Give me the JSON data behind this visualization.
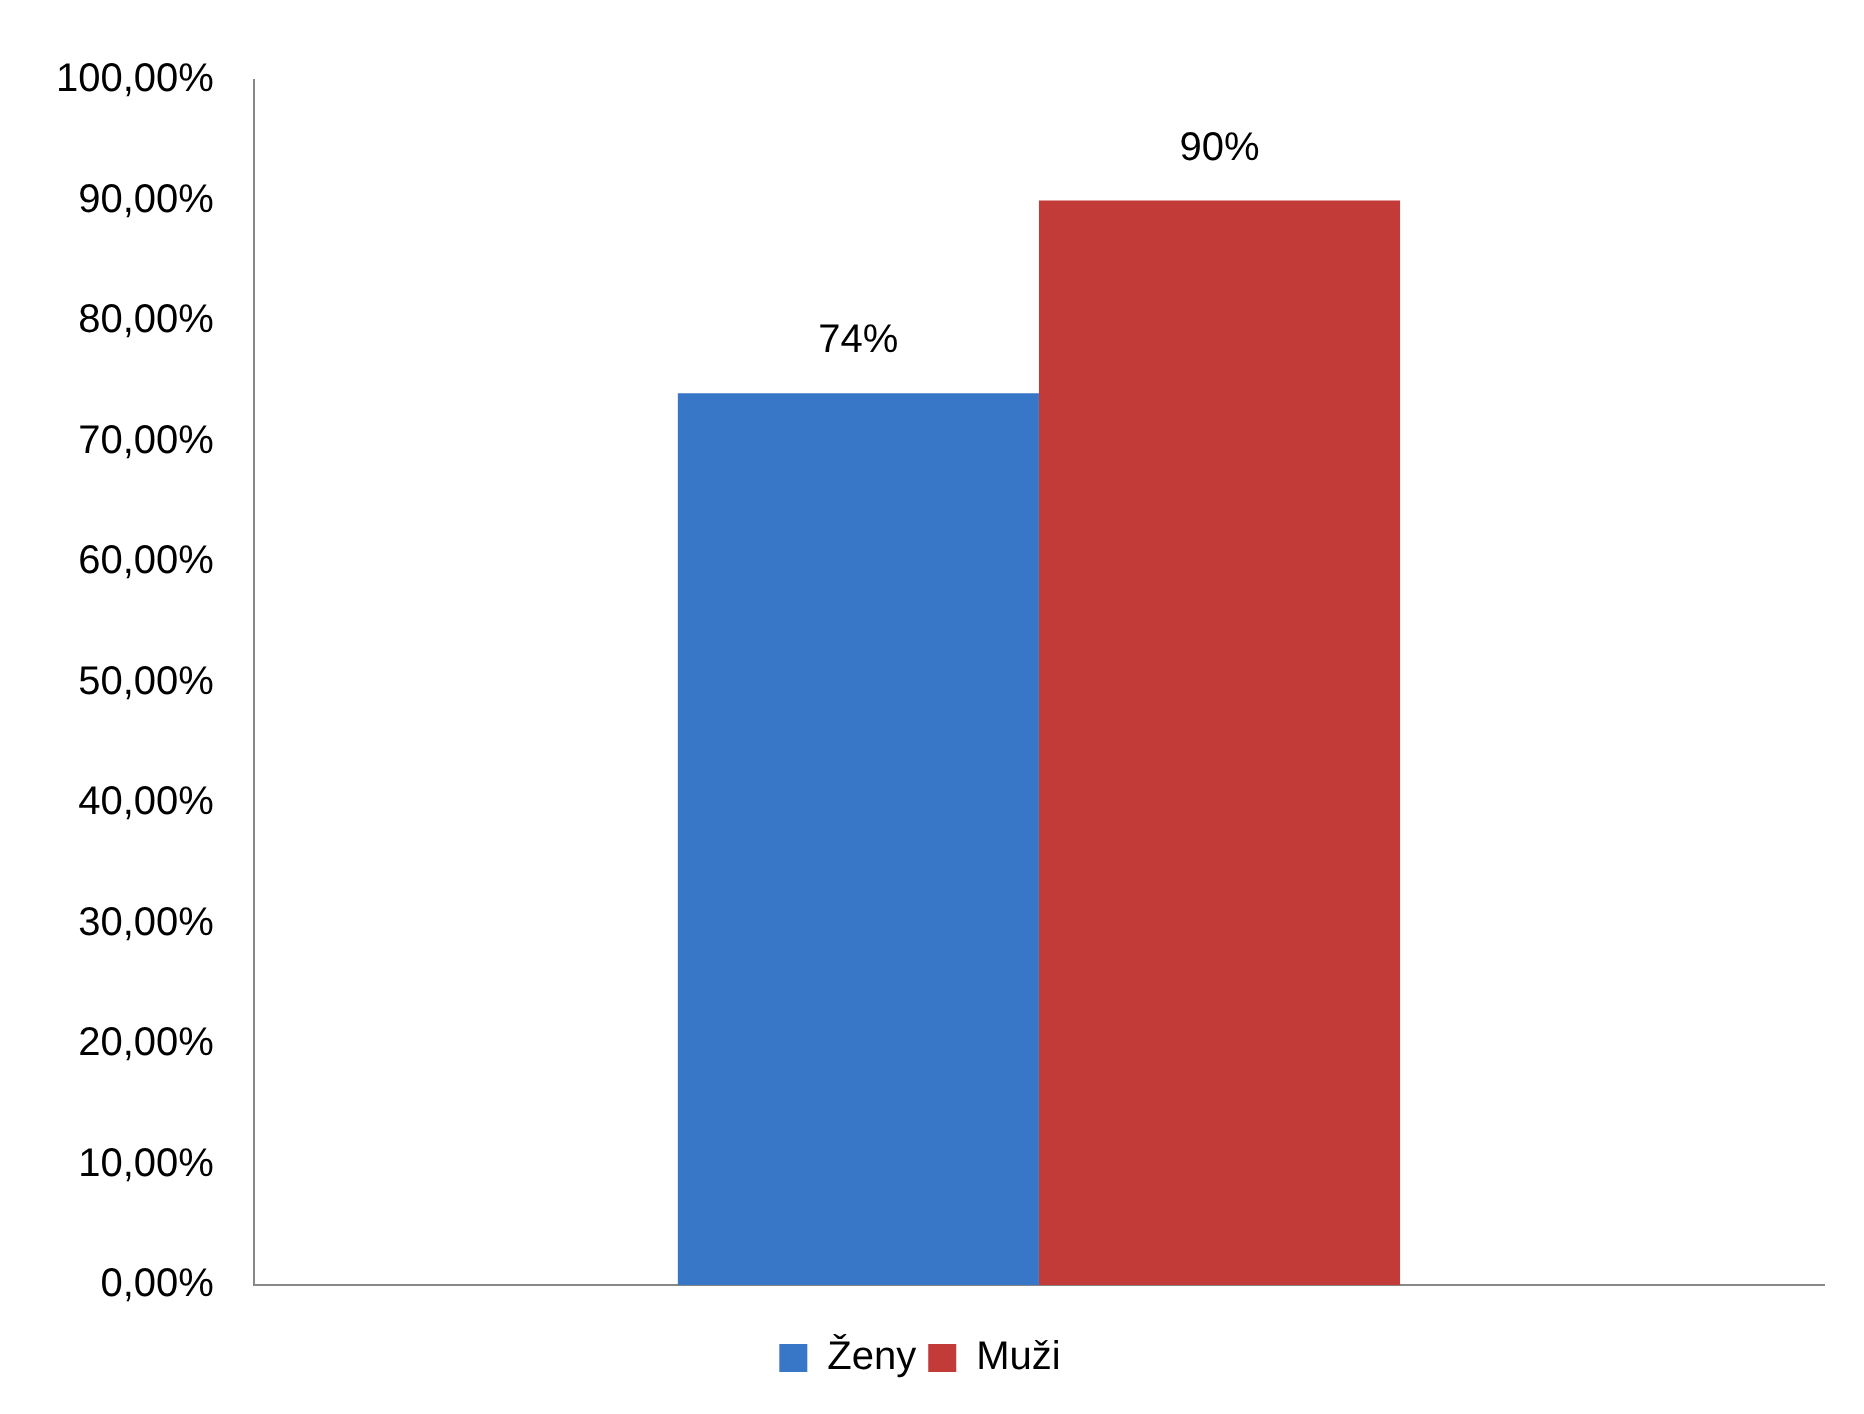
{
  "chart_data": {
    "type": "bar",
    "categories": [
      null
    ],
    "series": [
      {
        "name": "Ženy",
        "color": "#3877c8",
        "values": [
          74
        ],
        "value_labels": [
          "74%"
        ]
      },
      {
        "name": "Muži",
        "color": "#c23b38",
        "values": [
          90
        ],
        "value_labels": [
          "90%"
        ]
      }
    ],
    "ylim": [
      0,
      100
    ],
    "yticks": [
      {
        "value": 0,
        "label": "0,00%"
      },
      {
        "value": 10,
        "label": "10,00%"
      },
      {
        "value": 20,
        "label": "20,00%"
      },
      {
        "value": 30,
        "label": "30,00%"
      },
      {
        "value": 40,
        "label": "40,00%"
      },
      {
        "value": 50,
        "label": "50,00%"
      },
      {
        "value": 60,
        "label": "60,00%"
      },
      {
        "value": 70,
        "label": "70,00%"
      },
      {
        "value": 80,
        "label": "80,00%"
      },
      {
        "value": 90,
        "label": "90,00%"
      },
      {
        "value": 100,
        "label": "100,00%"
      }
    ],
    "grid": false,
    "legend": "bottom"
  }
}
